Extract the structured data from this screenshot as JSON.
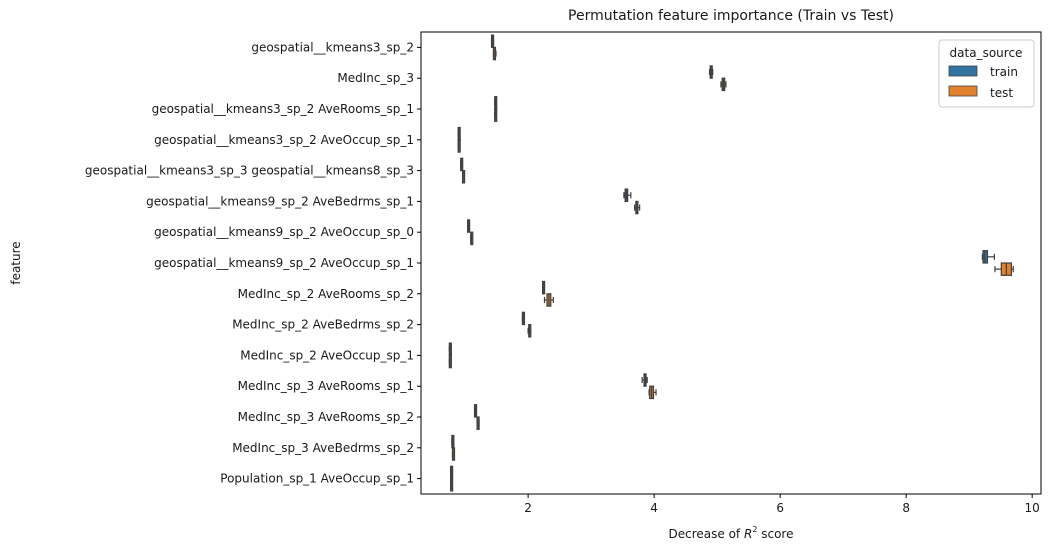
{
  "chart_data": {
    "type": "boxplot",
    "orientation": "horizontal",
    "title": "Permutation feature importance (Train vs Test)",
    "xlabel": "Decrease of R^2 score",
    "xlabel_parts": {
      "prefix": "Decrease of ",
      "var": "R",
      "sup": "2",
      "suffix": " score"
    },
    "ylabel": "feature",
    "xlim": [
      0.3,
      10.14
    ],
    "xticks": [
      2,
      4,
      6,
      8,
      10
    ],
    "grid": false,
    "legend": {
      "title": "data_source",
      "position": "upper right",
      "entries": [
        {
          "label": "train",
          "color": "#3274a1"
        },
        {
          "label": "test",
          "color": "#e1812c"
        }
      ]
    },
    "categories": [
      "geospatial__kmeans3_sp_2",
      "MedInc_sp_3",
      "geospatial__kmeans3_sp_2 AveRooms_sp_1",
      "geospatial__kmeans3_sp_2 AveOccup_sp_1",
      "geospatial__kmeans3_sp_3 geospatial__kmeans8_sp_3",
      "geospatial__kmeans9_sp_2 AveBedrms_sp_1",
      "geospatial__kmeans9_sp_2 AveOccup_sp_0",
      "geospatial__kmeans9_sp_2 AveOccup_sp_1",
      "MedInc_sp_2 AveRooms_sp_2",
      "MedInc_sp_2 AveBedrms_sp_2",
      "MedInc_sp_2 AveOccup_sp_1",
      "MedInc_sp_3 AveRooms_sp_1",
      "MedInc_sp_3 AveRooms_sp_2",
      "MedInc_sp_3 AveBedrms_sp_2",
      "Population_sp_1 AveOccup_sp_1"
    ],
    "series": [
      {
        "name": "train",
        "color": "#3274a1",
        "boxes": [
          {
            "wlo": 1.42,
            "q1": 1.42,
            "med": 1.43,
            "q3": 1.44,
            "whi": 1.45
          },
          {
            "wlo": 4.88,
            "q1": 4.89,
            "med": 4.9,
            "q3": 4.92,
            "whi": 4.93
          },
          {
            "wlo": 1.47,
            "q1": 1.47,
            "med": 1.48,
            "q3": 1.49,
            "whi": 1.49
          },
          {
            "wlo": 0.89,
            "q1": 0.89,
            "med": 0.9,
            "q3": 0.91,
            "whi": 0.91
          },
          {
            "wlo": 0.93,
            "q1": 0.93,
            "med": 0.94,
            "q3": 0.95,
            "whi": 0.95
          },
          {
            "wlo": 3.52,
            "q1": 3.54,
            "med": 3.56,
            "q3": 3.58,
            "whi": 3.63
          },
          {
            "wlo": 1.04,
            "q1": 1.04,
            "med": 1.05,
            "q3": 1.06,
            "whi": 1.06
          },
          {
            "wlo": 9.21,
            "q1": 9.22,
            "med": 9.25,
            "q3": 9.29,
            "whi": 9.4
          },
          {
            "wlo": 2.23,
            "q1": 2.23,
            "med": 2.24,
            "q3": 2.25,
            "whi": 2.25
          },
          {
            "wlo": 1.91,
            "q1": 1.91,
            "med": 1.92,
            "q3": 1.93,
            "whi": 1.93
          },
          {
            "wlo": 0.75,
            "q1": 0.75,
            "med": 0.76,
            "q3": 0.77,
            "whi": 0.77
          },
          {
            "wlo": 3.81,
            "q1": 3.84,
            "med": 3.86,
            "q3": 3.87,
            "whi": 3.89
          },
          {
            "wlo": 1.15,
            "q1": 1.15,
            "med": 1.16,
            "q3": 1.17,
            "whi": 1.17
          },
          {
            "wlo": 0.79,
            "q1": 0.79,
            "med": 0.8,
            "q3": 0.81,
            "whi": 0.81
          },
          {
            "wlo": 0.77,
            "q1": 0.77,
            "med": 0.78,
            "q3": 0.79,
            "whi": 0.79
          }
        ]
      },
      {
        "name": "test",
        "color": "#e1812c",
        "boxes": [
          {
            "wlo": 1.45,
            "q1": 1.45,
            "med": 1.46,
            "q3": 1.47,
            "whi": 1.49
          },
          {
            "wlo": 5.06,
            "q1": 5.08,
            "med": 5.1,
            "q3": 5.12,
            "whi": 5.14
          },
          {
            "wlo": 1.47,
            "q1": 1.47,
            "med": 1.48,
            "q3": 1.49,
            "whi": 1.49
          },
          {
            "wlo": 0.89,
            "q1": 0.89,
            "med": 0.9,
            "q3": 0.91,
            "whi": 0.91
          },
          {
            "wlo": 0.96,
            "q1": 0.96,
            "med": 0.97,
            "q3": 0.98,
            "whi": 0.98
          },
          {
            "wlo": 3.69,
            "q1": 3.71,
            "med": 3.73,
            "q3": 3.74,
            "whi": 3.77
          },
          {
            "wlo": 1.09,
            "q1": 1.09,
            "med": 1.1,
            "q3": 1.11,
            "whi": 1.11
          },
          {
            "wlo": 9.41,
            "q1": 9.51,
            "med": 9.59,
            "q3": 9.67,
            "whi": 9.7
          },
          {
            "wlo": 2.26,
            "q1": 2.3,
            "med": 2.33,
            "q3": 2.36,
            "whi": 2.4
          },
          {
            "wlo": 2.0,
            "q1": 2.01,
            "med": 2.02,
            "q3": 2.03,
            "whi": 2.04
          },
          {
            "wlo": 0.75,
            "q1": 0.75,
            "med": 0.76,
            "q3": 0.77,
            "whi": 0.77
          },
          {
            "wlo": 3.92,
            "q1": 3.93,
            "med": 3.96,
            "q3": 3.99,
            "whi": 4.03
          },
          {
            "wlo": 1.19,
            "q1": 1.19,
            "med": 1.21,
            "q3": 1.22,
            "whi": 1.22
          },
          {
            "wlo": 0.8,
            "q1": 0.8,
            "med": 0.81,
            "q3": 0.82,
            "whi": 0.82
          },
          {
            "wlo": 0.77,
            "q1": 0.77,
            "med": 0.78,
            "q3": 0.79,
            "whi": 0.79
          }
        ]
      }
    ]
  }
}
